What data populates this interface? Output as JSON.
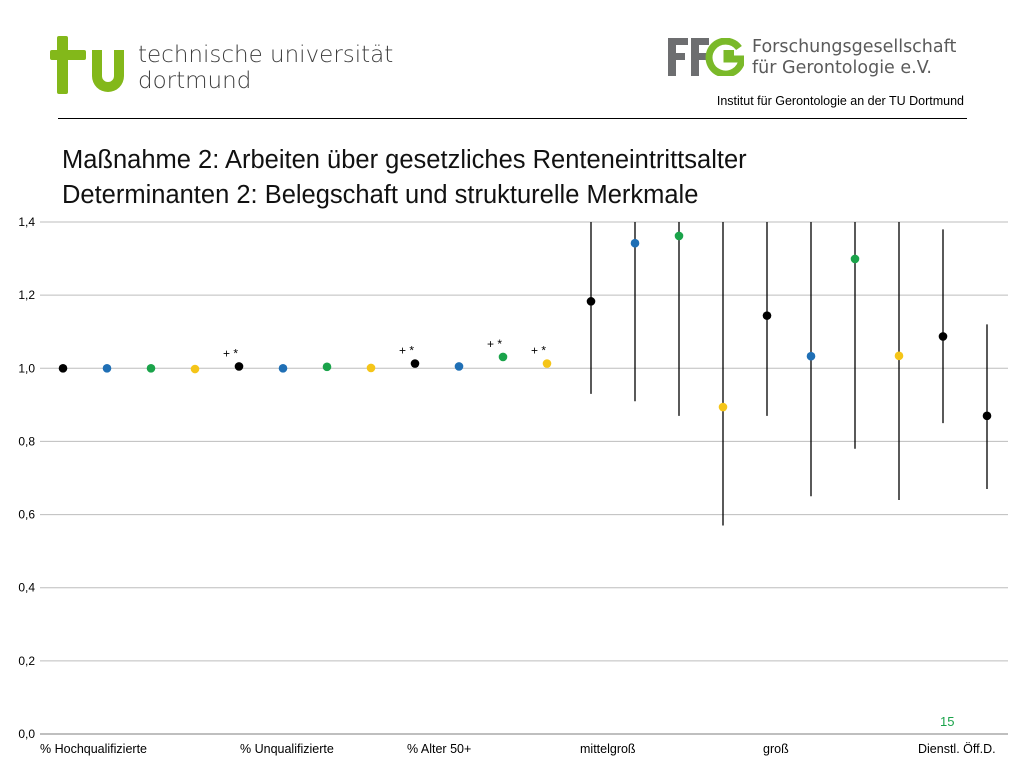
{
  "header": {
    "tu_name_line1": "technische universität",
    "tu_name_line2": "dortmund",
    "ffg_name_line1": "Forschungsgesellschaft",
    "ffg_name_line2": "für Gerontologie e.V.",
    "institute": "Institut für Gerontologie an der TU Dortmund",
    "tu_color": "#83b81a",
    "ffg_gray": "#6d6e70",
    "ffg_green": "#7ab929"
  },
  "title": {
    "line1": "Maßnahme 2: Arbeiten über gesetzliches Renteneintrittsalter",
    "line2": "Determinanten 2: Belegschaft und strukturelle Merkmale"
  },
  "page_number": "15",
  "chart_data": {
    "type": "scatter",
    "title": "",
    "xlabel": "",
    "ylabel": "",
    "ylim": [
      0,
      1.4
    ],
    "yticks": [
      "0,0",
      "0,2",
      "0,4",
      "0,6",
      "0,8",
      "1,0",
      "1,2",
      "1,4"
    ],
    "grid": true,
    "categories": [
      "%  Hochqualifizierte",
      "% Unqualifizierte",
      "% Alter 50+",
      "mittelgroß",
      "groß",
      "Dienstl. Öff.D."
    ],
    "colors": {
      "black": "#000000",
      "blue": "#1f6fb5",
      "green": "#1aa34a",
      "yellow": "#f5c518"
    },
    "points": [
      {
        "group": 1,
        "color": "black",
        "y": 1.0
      },
      {
        "group": 1,
        "color": "blue",
        "y": 1.0
      },
      {
        "group": 1,
        "color": "green",
        "y": 1.0
      },
      {
        "group": 1,
        "color": "yellow",
        "y": 0.998
      },
      {
        "group": 2,
        "color": "black",
        "y": 1.005,
        "annotation": "+ *"
      },
      {
        "group": 2,
        "color": "blue",
        "y": 1.0
      },
      {
        "group": 2,
        "color": "green",
        "y": 1.004
      },
      {
        "group": 2,
        "color": "yellow",
        "y": 1.001
      },
      {
        "group": 3,
        "color": "black",
        "y": 1.013,
        "annotation": "+ *"
      },
      {
        "group": 3,
        "color": "blue",
        "y": 1.005
      },
      {
        "group": 3,
        "color": "green",
        "y": 1.031,
        "annotation": "+ *"
      },
      {
        "group": 3,
        "color": "yellow",
        "y": 1.013,
        "annotation": "+ *"
      },
      {
        "group": 4,
        "color": "black",
        "y": 1.183,
        "ci": [
          0.93,
          1.4
        ]
      },
      {
        "group": 4,
        "color": "blue",
        "y": 1.342,
        "ci": [
          0.91,
          1.4
        ]
      },
      {
        "group": 4,
        "color": "green",
        "y": 1.362,
        "ci": [
          0.87,
          1.4
        ]
      },
      {
        "group": 4,
        "color": "yellow",
        "y": 0.894,
        "ci": [
          0.57,
          1.4
        ]
      },
      {
        "group": 5,
        "color": "black",
        "y": 1.144,
        "ci": [
          0.87,
          1.4
        ]
      },
      {
        "group": 5,
        "color": "blue",
        "y": 1.033,
        "ci": [
          0.65,
          1.4
        ]
      },
      {
        "group": 5,
        "color": "green",
        "y": 1.299,
        "ci": [
          0.78,
          1.4
        ]
      },
      {
        "group": 5,
        "color": "yellow",
        "y": 1.034,
        "ci": [
          0.64,
          1.4
        ]
      },
      {
        "group": 6,
        "color": "black",
        "y": 1.087,
        "ci": [
          0.85,
          1.38
        ]
      },
      {
        "group": 6,
        "color": "black",
        "y": 0.87,
        "ci": [
          0.67,
          1.12
        ]
      }
    ]
  }
}
